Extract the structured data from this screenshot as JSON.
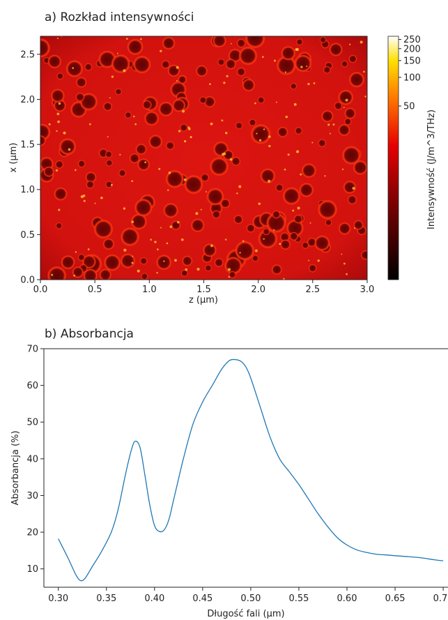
{
  "chart_data": [
    {
      "id": "a",
      "type": "heatmap",
      "title": "a)  Rozkład intensywności",
      "xlabel": "z (μm)",
      "ylabel": "x (μm)",
      "xlim": [
        0.0,
        3.0
      ],
      "ylim": [
        0.0,
        2.7
      ],
      "xticks": [
        "0.0",
        "0.5",
        "1.0",
        "1.5",
        "2.0",
        "2.5",
        "3.0"
      ],
      "yticks": [
        "0.0",
        "0.5",
        "1.0",
        "1.5",
        "2.0",
        "2.5"
      ],
      "colormap": "hot",
      "colorbar": {
        "label": "Intensywność  (J/m^3/THz)",
        "scale": "log",
        "ticks": [
          "250",
          "200",
          "150",
          "100",
          "50"
        ],
        "range": [
          0,
          270
        ]
      },
      "field_colors": {
        "background": "#d8130f",
        "edge": "#b50a08",
        "hole": "#6b0403",
        "rim": "#ff3a10",
        "hotspot": "#ffd23a"
      }
    },
    {
      "id": "b",
      "type": "line",
      "title": "b) Absorbancja",
      "xlabel": "Długość fali  (μm)",
      "ylabel": "Absorbancja (%)",
      "xlim": [
        0.285,
        0.705
      ],
      "ylim": [
        5,
        70
      ],
      "xticks": [
        "0.30",
        "0.35",
        "0.40",
        "0.45",
        "0.50",
        "0.55",
        "0.60",
        "0.65",
        "0.70"
      ],
      "yticks": [
        "10",
        "20",
        "30",
        "40",
        "50",
        "60",
        "70"
      ],
      "series": [
        {
          "color": "#1f77b4",
          "x": [
            0.3,
            0.31,
            0.318,
            0.323,
            0.328,
            0.335,
            0.345,
            0.355,
            0.362,
            0.37,
            0.376,
            0.38,
            0.385,
            0.39,
            0.395,
            0.4,
            0.405,
            0.41,
            0.415,
            0.42,
            0.43,
            0.44,
            0.45,
            0.46,
            0.47,
            0.478,
            0.485,
            0.49,
            0.495,
            0.5,
            0.51,
            0.52,
            0.53,
            0.54,
            0.55,
            0.56,
            0.57,
            0.58,
            0.59,
            0.6,
            0.61,
            0.62,
            0.63,
            0.64,
            0.65,
            0.66,
            0.67,
            0.68,
            0.69,
            0.7
          ],
          "y": [
            18.2,
            13.0,
            8.5,
            6.8,
            7.5,
            10.5,
            14.8,
            20.0,
            26.0,
            36.0,
            42.5,
            44.8,
            43.0,
            35.5,
            27.5,
            21.8,
            20.2,
            20.6,
            23.5,
            29.0,
            40.0,
            49.5,
            55.5,
            60.0,
            64.5,
            66.8,
            67.0,
            66.5,
            65.0,
            62.0,
            54.0,
            46.0,
            40.0,
            36.5,
            33.0,
            29.0,
            25.0,
            21.5,
            18.5,
            16.5,
            15.2,
            14.5,
            14.0,
            13.8,
            13.6,
            13.4,
            13.2,
            12.9,
            12.5,
            12.2
          ]
        }
      ]
    }
  ]
}
